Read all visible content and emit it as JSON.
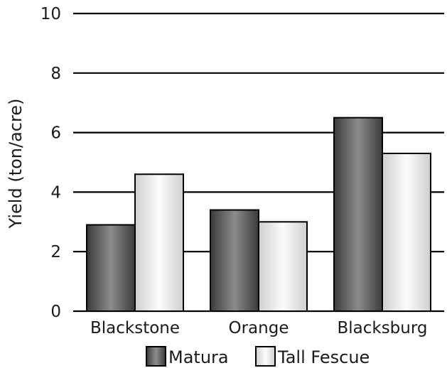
{
  "chart_data": {
    "type": "bar",
    "title": "",
    "xlabel": "",
    "ylabel": "Yield (ton/acre)",
    "ylim": [
      0,
      10
    ],
    "yticks": [
      0,
      2,
      4,
      6,
      8,
      10
    ],
    "grid": true,
    "legend_position": "bottom",
    "categories": [
      "Blackstone",
      "Orange",
      "Blacksburg"
    ],
    "series": [
      {
        "name": "Matura",
        "values": [
          2.9,
          3.4,
          6.5
        ],
        "color": "#555555"
      },
      {
        "name": "Tall Fescue",
        "values": [
          4.6,
          3.0,
          5.3
        ],
        "color": "#e6e6e6"
      }
    ]
  }
}
